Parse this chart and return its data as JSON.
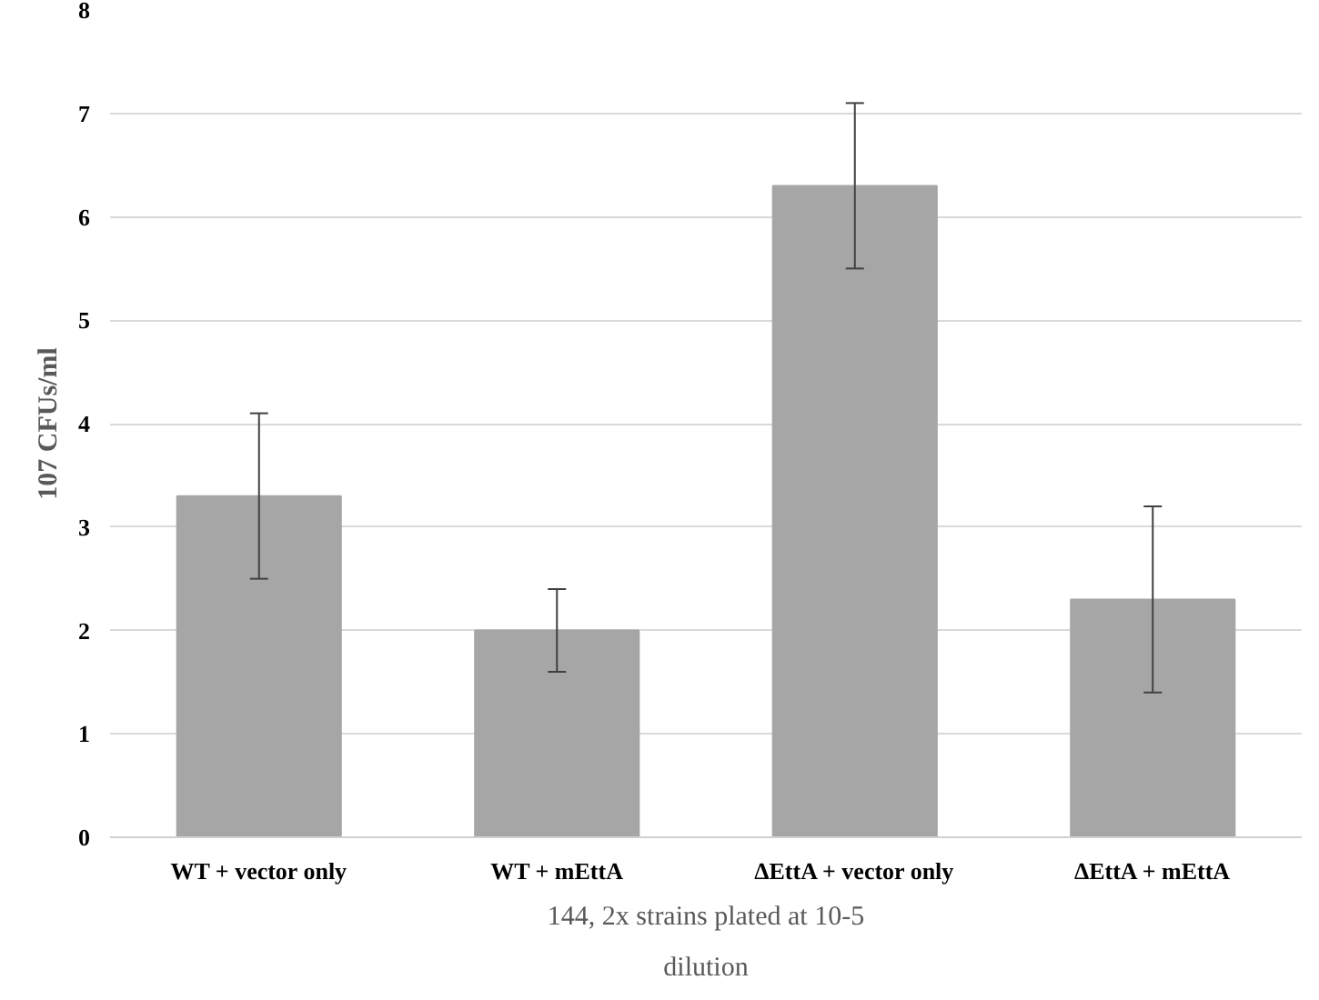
{
  "chart_data": {
    "type": "bar",
    "xlabel": "144, 2x strains plated at 10-5 dilution",
    "ylabel": "107 CFUs/ml",
    "categories": [
      "WT + vector only",
      "WT + mEttA",
      "ΔEttA + vector only",
      "ΔEttA + mEttA"
    ],
    "values": [
      3.3,
      2.0,
      6.3,
      2.3
    ],
    "errors": [
      [
        2.5,
        4.1
      ],
      [
        1.6,
        2.4
      ],
      [
        5.5,
        7.1
      ],
      [
        1.4,
        3.2
      ]
    ],
    "color": "#a6a6a6",
    "ylim": [
      0,
      8
    ],
    "yticks": [
      0,
      1,
      2,
      3,
      4,
      5,
      6,
      7,
      8
    ],
    "grid": "y"
  }
}
